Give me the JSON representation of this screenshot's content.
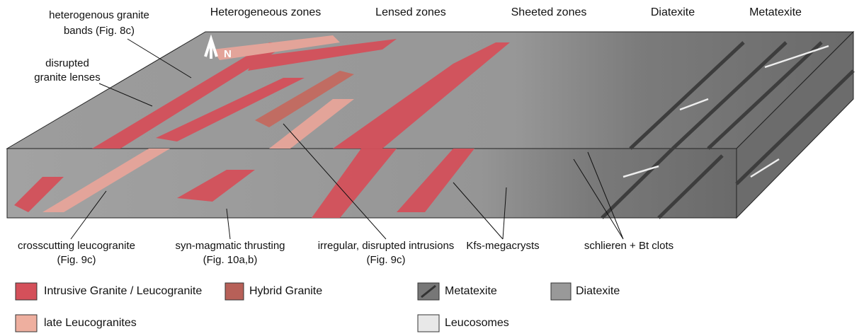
{
  "zones": [
    "Heterogeneous zones",
    "Lensed zones",
    "Sheeted zones",
    "Diatexite",
    "Metatexite"
  ],
  "north_label": "N",
  "callouts": [
    {
      "lines": [
        "heterogenous granite",
        "bands (Fig. 8c)"
      ]
    },
    {
      "lines": [
        "disrupted",
        "granite lenses"
      ]
    },
    {
      "lines": [
        "crosscutting leucogranite",
        "(Fig. 9c)"
      ]
    },
    {
      "lines": [
        "syn-magmatic thrusting",
        "(Fig. 10a,b)"
      ]
    },
    {
      "lines": [
        "irregular, disrupted intrusions",
        "(Fig. 9c)"
      ]
    },
    {
      "lines": [
        "Kfs-megacrysts"
      ]
    },
    {
      "lines": [
        "schlieren + Bt clots"
      ]
    }
  ],
  "legend": [
    "Intrusive Granite / Leucogranite",
    "Hybrid Granite",
    "Metatexite",
    "Diatexite",
    "late Leucogranites",
    "Leucosomes"
  ]
}
